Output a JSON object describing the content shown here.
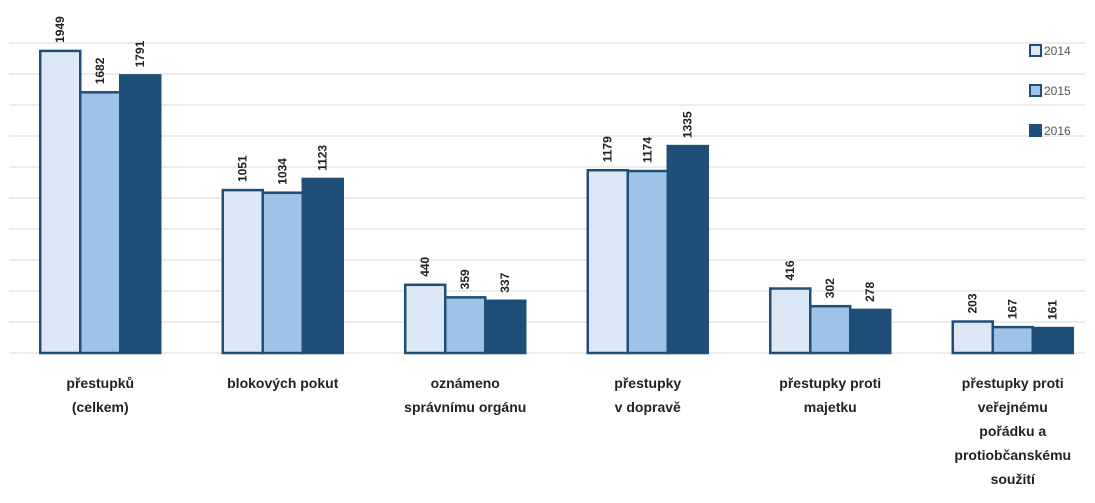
{
  "chart_data": {
    "type": "bar",
    "categories": [
      "přestupků\n(celkem)",
      "blokových pokut",
      "oznámeno\nsprávnímu orgánu",
      "přestupky\nv dopravě",
      "přestupky proti\nmajetku",
      "přestupky proti\nveřejnému\npořádku a\nprotiobčanskému\nsoužití"
    ],
    "series": [
      {
        "name": "2014",
        "color": "#dce8f5",
        "values": [
          1949,
          1051,
          440,
          1179,
          416,
          203
        ]
      },
      {
        "name": "2015",
        "color": "#9dc3e6",
        "values": [
          1682,
          1034,
          359,
          1174,
          302,
          167
        ]
      },
      {
        "name": "2016",
        "color": "#1f4e79",
        "values": [
          1791,
          1123,
          337,
          1335,
          278,
          161
        ]
      }
    ],
    "ylim": [
      0,
      2000
    ],
    "yticks": [
      0,
      200,
      400,
      600,
      800,
      1000,
      1200,
      1400,
      1600,
      1800,
      2000
    ],
    "grid": true,
    "legend": "right",
    "edge_color": "#1f4e79"
  }
}
